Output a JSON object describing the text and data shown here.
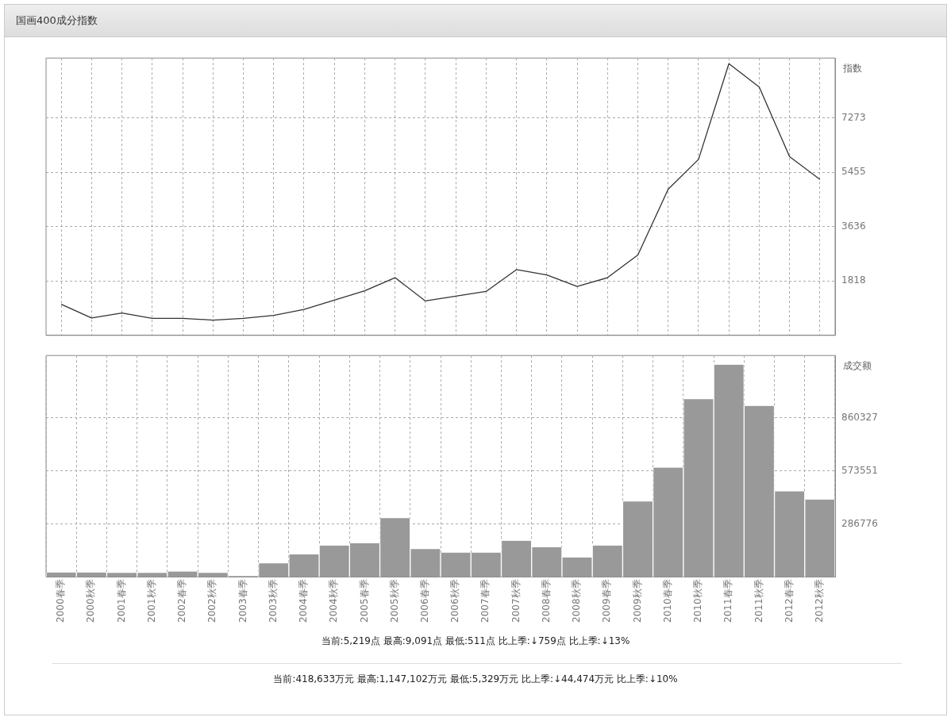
{
  "chart_data": [
    {
      "type": "line",
      "title": "国画400成分指数",
      "ylabel": "指数",
      "categories": [
        null,
        null,
        null,
        null,
        null,
        null,
        null,
        null,
        null,
        null,
        null,
        null,
        null,
        null,
        null,
        null,
        null,
        null,
        null,
        null,
        null,
        null,
        null,
        null,
        null,
        null
      ],
      "series": [
        {
          "color": "#333333",
          "values": [
            1040,
            580,
            750,
            570,
            570,
            511,
            570,
            670,
            870,
            1180,
            1490,
            1930,
            1150,
            1310,
            1470,
            2200,
            2020,
            1640,
            1930,
            2690,
            4890,
            5890,
            9091,
            8310,
            5978,
            5219
          ]
        }
      ],
      "ylim": [
        0,
        9280
      ],
      "yticks": [
        1818,
        3636,
        5455,
        7273
      ],
      "grid": true,
      "tick_labels": "y",
      "marker": "none",
      "line_style": "solid"
    },
    {
      "type": "bar",
      "ylabel": "成交额",
      "categories": [
        "2000春季",
        "2000秋季",
        "2001春季",
        "2001秋季",
        "2002春季",
        "2002秋季",
        "2003春季",
        "2003秋季",
        "2004春季",
        "2004秋季",
        "2005春季",
        "2005秋季",
        "2006春季",
        "2006秋季",
        "2007春季",
        "2007秋季",
        "2008春季",
        "2008秋季",
        "2009春季",
        "2009秋季",
        "2010春季",
        "2010秋季",
        "2011春季",
        "2011秋季",
        "2012春季",
        "2012秋季"
      ],
      "series": [
        {
          "color": "#999999",
          "values": [
            25000,
            25000,
            22000,
            22000,
            30000,
            22000,
            5329,
            74000,
            122000,
            170000,
            183000,
            318000,
            151000,
            132000,
            132000,
            196000,
            161000,
            106000,
            170000,
            408000,
            591000,
            961000,
            1147102,
            925000,
            463107,
            418633
          ]
        }
      ],
      "ylim": [
        0,
        1197000
      ],
      "yticks": [
        286776,
        573551,
        860327
      ],
      "grid": true,
      "annotations": [
        "当前:5,219点 最高:9,091点 最低:511点 比上季:↓759点 比上季:↓13%",
        "当前:418,633万元 最高:1,147,102万元 最低:5,329万元 比上季:↓44,474万元 比上季:↓10%"
      ]
    }
  ]
}
